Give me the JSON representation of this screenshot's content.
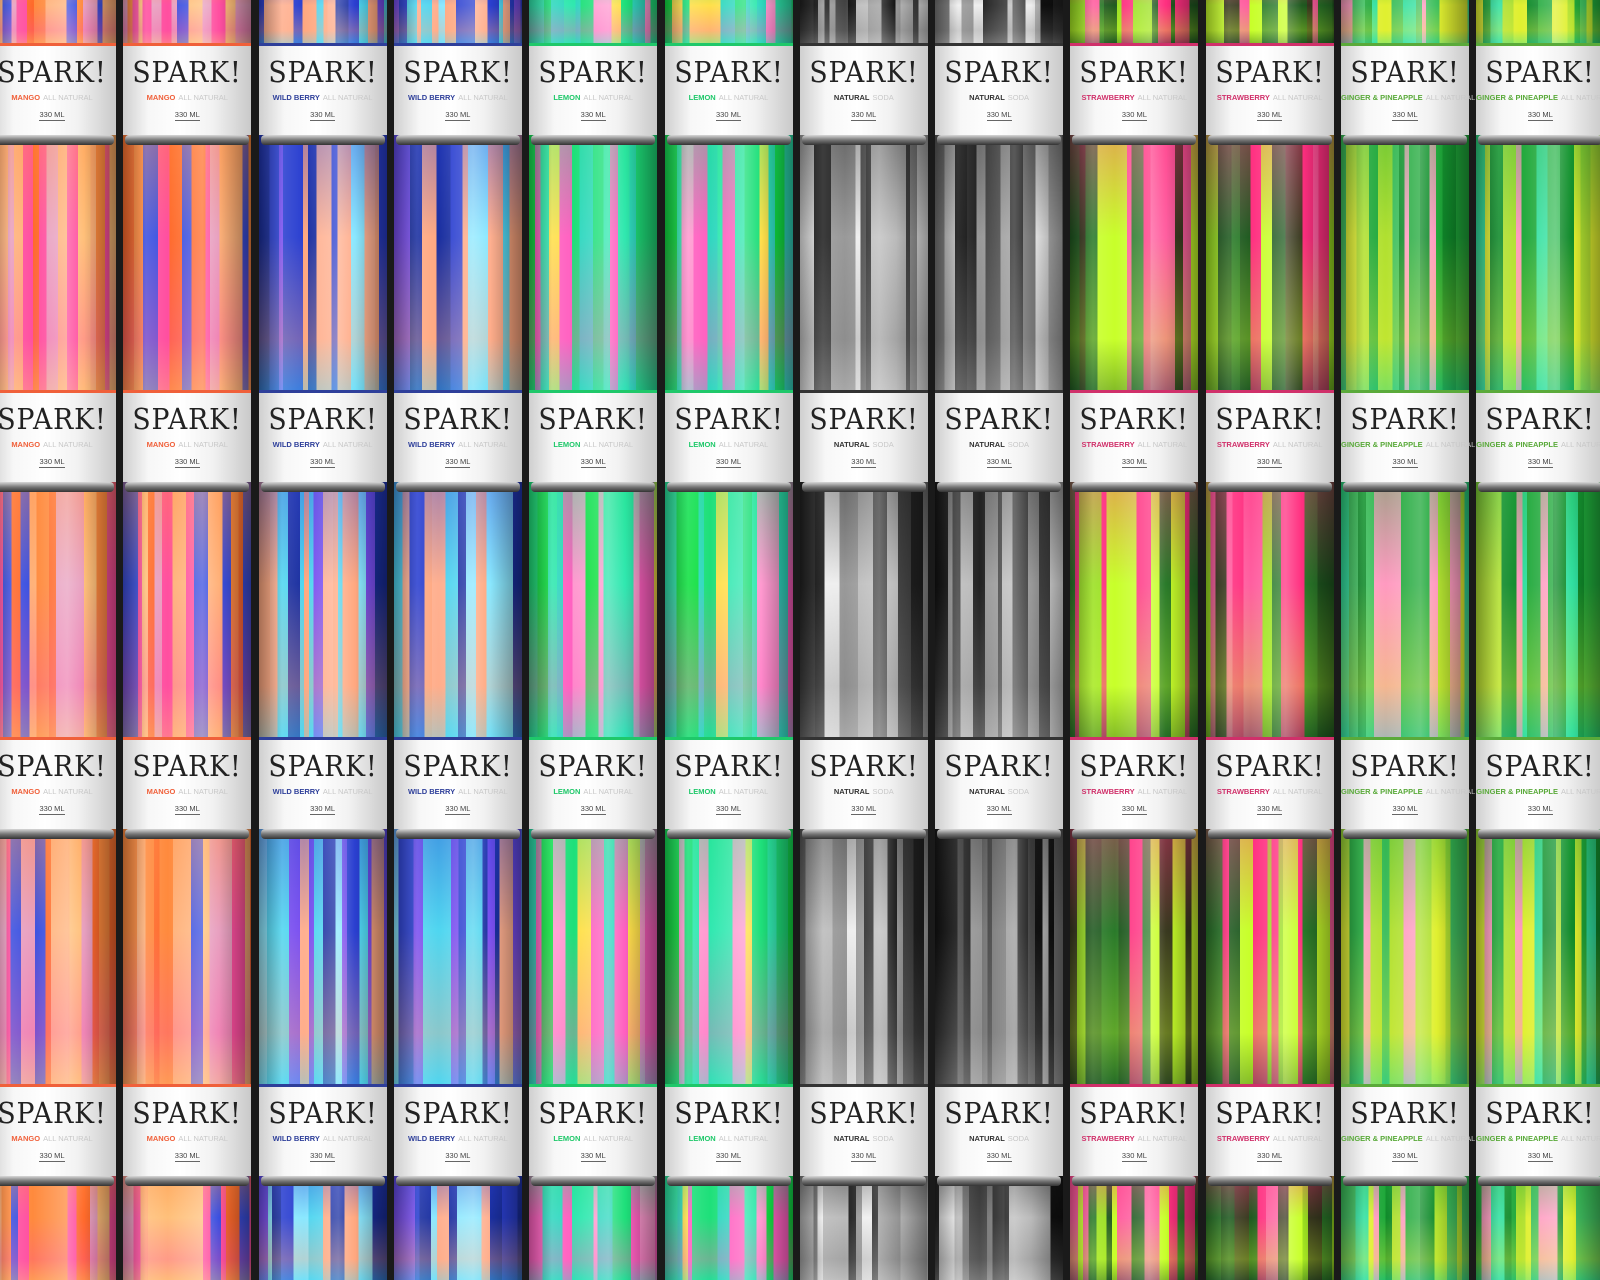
{
  "brand": "SPARK!",
  "volume": "330 ML",
  "flavors": [
    {
      "name": "MANGO",
      "descriptor": "ALL NATURAL",
      "accent": "#f0603a",
      "palette": [
        "#ff8a3d",
        "#ffb27a",
        "#ff4fa0",
        "#3a4fe0",
        "#ffc07a",
        "#ff6a2a",
        "#e8a0c0"
      ]
    },
    {
      "name": "WILD BERRY",
      "descriptor": "ALL NATURAL",
      "accent": "#2e3f9a",
      "palette": [
        "#2a3fd0",
        "#4fd6f0",
        "#ffa880",
        "#7a4ff0",
        "#1a2fa0",
        "#8ae8ff",
        "#ffb090"
      ]
    },
    {
      "name": "LEMON",
      "descriptor": "ALL NATURAL",
      "accent": "#1fc86a",
      "palette": [
        "#1ee07a",
        "#2fd8c0",
        "#ff5fc0",
        "#ffe04a",
        "#10e040",
        "#ff9ad0",
        "#30e8b0"
      ]
    },
    {
      "name": "NATURAL",
      "descriptor": "SODA",
      "accent": "#333333",
      "palette": [
        "#222222",
        "#bbbbbb",
        "#777777",
        "#eeeeee",
        "#444444",
        "#999999",
        "#111111"
      ]
    },
    {
      "name": "STRAWBERRY",
      "descriptor": "ALL NATURAL",
      "accent": "#d0306a",
      "palette": [
        "#ff2f80",
        "#1f5a20",
        "#c8ff2a",
        "#2a7a2a",
        "#ff5fa0",
        "#9ae020",
        "#3a3a20"
      ]
    },
    {
      "name": "GINGER & PINEAPPLE",
      "descriptor": "ALL NATURAL",
      "accent": "#5aaa3a",
      "palette": [
        "#1fa83a",
        "#30e0a0",
        "#e0f030",
        "#ff9ac0",
        "#0f8a2a",
        "#40c060",
        "#b0e030"
      ]
    }
  ]
}
